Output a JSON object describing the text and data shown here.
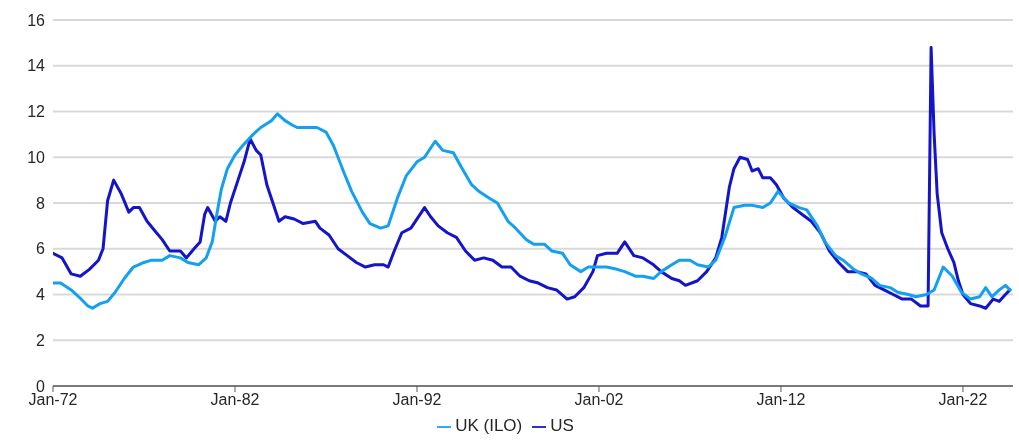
{
  "chart_data": {
    "type": "line",
    "xlim": [
      "1972-01",
      "2024-10"
    ],
    "xticks": [
      {
        "value": "1972-01",
        "label": "Jan-72"
      },
      {
        "value": "1982-01",
        "label": "Jan-82"
      },
      {
        "value": "1992-01",
        "label": "Jan-92"
      },
      {
        "value": "2002-01",
        "label": "Jan-02"
      },
      {
        "value": "2012-01",
        "label": "Jan-12"
      },
      {
        "value": "2022-01",
        "label": "Jan-22"
      }
    ],
    "ylim": [
      0,
      16
    ],
    "yticks": [
      0,
      2,
      4,
      6,
      8,
      10,
      12,
      14,
      16
    ],
    "grid": "y",
    "legend": "bottom",
    "marker": "none",
    "line_style": "solid",
    "series": [
      {
        "name": "US",
        "color": "#1414c8",
        "x": [
          "1972-01",
          "1972-07",
          "1973-01",
          "1973-07",
          "1974-01",
          "1974-07",
          "1974-10",
          "1975-01",
          "1975-05",
          "1975-10",
          "1976-03",
          "1976-06",
          "1976-10",
          "1977-03",
          "1977-08",
          "1978-01",
          "1978-06",
          "1979-01",
          "1979-05",
          "1979-10",
          "1980-02",
          "1980-05",
          "1980-07",
          "1980-12",
          "1981-03",
          "1981-07",
          "1981-10",
          "1982-03",
          "1982-07",
          "1982-11",
          "1983-03",
          "1983-06",
          "1983-10",
          "1984-03",
          "1984-06",
          "1984-10",
          "1985-04",
          "1985-10",
          "1986-06",
          "1986-09",
          "1987-03",
          "1987-09",
          "1988-03",
          "1988-09",
          "1989-03",
          "1989-09",
          "1990-03",
          "1990-06",
          "1990-10",
          "1991-03",
          "1991-09",
          "1992-06",
          "1992-10",
          "1993-03",
          "1993-09",
          "1994-03",
          "1994-09",
          "1995-03",
          "1995-09",
          "1996-03",
          "1996-09",
          "1997-03",
          "1997-09",
          "1998-03",
          "1998-09",
          "1999-03",
          "1999-09",
          "2000-04",
          "2000-09",
          "2001-03",
          "2001-09",
          "2001-12",
          "2002-06",
          "2003-01",
          "2003-06",
          "2003-12",
          "2004-06",
          "2005-01",
          "2005-06",
          "2006-01",
          "2006-06",
          "2006-10",
          "2007-06",
          "2007-12",
          "2008-06",
          "2008-10",
          "2009-03",
          "2009-06",
          "2009-10",
          "2010-03",
          "2010-06",
          "2010-10",
          "2011-01",
          "2011-06",
          "2011-10",
          "2012-03",
          "2012-09",
          "2013-03",
          "2013-09",
          "2014-03",
          "2014-09",
          "2015-03",
          "2015-09",
          "2016-03",
          "2016-09",
          "2017-03",
          "2017-09",
          "2018-03",
          "2018-09",
          "2019-03",
          "2019-09",
          "2020-02",
          "2020-04",
          "2020-06",
          "2020-08",
          "2020-11",
          "2021-03",
          "2021-07",
          "2021-10",
          "2022-01",
          "2022-06",
          "2022-12",
          "2023-04",
          "2023-09",
          "2024-01",
          "2024-05",
          "2024-08"
        ],
        "values": [
          5.8,
          5.6,
          4.9,
          4.8,
          5.1,
          5.5,
          6.0,
          8.1,
          9.0,
          8.4,
          7.6,
          7.8,
          7.8,
          7.2,
          6.8,
          6.4,
          5.9,
          5.9,
          5.6,
          6.0,
          6.3,
          7.5,
          7.8,
          7.2,
          7.4,
          7.2,
          8.0,
          9.0,
          9.8,
          10.8,
          10.3,
          10.1,
          8.8,
          7.8,
          7.2,
          7.4,
          7.3,
          7.1,
          7.2,
          6.9,
          6.6,
          6.0,
          5.7,
          5.4,
          5.2,
          5.3,
          5.3,
          5.2,
          5.9,
          6.7,
          6.9,
          7.8,
          7.4,
          7.0,
          6.7,
          6.5,
          5.9,
          5.5,
          5.6,
          5.5,
          5.2,
          5.2,
          4.8,
          4.6,
          4.5,
          4.3,
          4.2,
          3.8,
          3.9,
          4.3,
          5.0,
          5.7,
          5.8,
          5.8,
          6.3,
          5.7,
          5.6,
          5.3,
          5.0,
          4.7,
          4.6,
          4.4,
          4.6,
          5.0,
          5.6,
          6.5,
          8.7,
          9.5,
          10.0,
          9.9,
          9.4,
          9.5,
          9.1,
          9.1,
          8.8,
          8.2,
          7.8,
          7.5,
          7.2,
          6.7,
          5.9,
          5.4,
          5.0,
          5.0,
          4.9,
          4.4,
          4.2,
          4.0,
          3.8,
          3.8,
          3.5,
          3.5,
          14.8,
          11.0,
          8.4,
          6.7,
          6.0,
          5.4,
          4.6,
          4.0,
          3.6,
          3.5,
          3.4,
          3.8,
          3.7,
          4.0,
          4.2
        ]
      },
      {
        "name": "UK (ILO)",
        "color": "#14a0f0",
        "x": [
          "1972-01",
          "1972-06",
          "1973-01",
          "1973-06",
          "1973-12",
          "1974-03",
          "1974-08",
          "1975-01",
          "1975-06",
          "1975-12",
          "1976-06",
          "1977-01",
          "1977-06",
          "1978-01",
          "1978-06",
          "1979-01",
          "1979-06",
          "1980-01",
          "1980-06",
          "1980-10",
          "1981-01",
          "1981-04",
          "1981-08",
          "1982-01",
          "1982-06",
          "1983-01",
          "1983-06",
          "1984-01",
          "1984-05",
          "1984-10",
          "1985-03",
          "1985-06",
          "1986-01",
          "1986-07",
          "1987-01",
          "1987-06",
          "1988-01",
          "1988-06",
          "1989-01",
          "1989-06",
          "1990-01",
          "1990-06",
          "1990-12",
          "1991-06",
          "1992-01",
          "1992-06",
          "1993-01",
          "1993-06",
          "1994-01",
          "1994-06",
          "1995-01",
          "1995-06",
          "1996-01",
          "1996-06",
          "1997-01",
          "1997-06",
          "1998-01",
          "1998-06",
          "1999-01",
          "1999-06",
          "2000-01",
          "2000-06",
          "2001-01",
          "2001-06",
          "2002-01",
          "2002-06",
          "2003-01",
          "2003-06",
          "2004-01",
          "2004-06",
          "2005-01",
          "2005-06",
          "2006-01",
          "2006-06",
          "2007-01",
          "2007-06",
          "2008-01",
          "2008-06",
          "2008-12",
          "2009-06",
          "2010-01",
          "2010-06",
          "2011-01",
          "2011-06",
          "2011-11",
          "2012-06",
          "2013-01",
          "2013-06",
          "2014-01",
          "2014-06",
          "2015-01",
          "2015-06",
          "2016-01",
          "2016-06",
          "2017-01",
          "2017-06",
          "2018-01",
          "2018-06",
          "2019-01",
          "2019-06",
          "2020-01",
          "2020-06",
          "2020-12",
          "2021-06",
          "2021-12",
          "2022-06",
          "2022-12",
          "2023-04",
          "2023-08",
          "2024-01",
          "2024-05",
          "2024-08"
        ],
        "values": [
          4.5,
          4.5,
          4.2,
          3.9,
          3.5,
          3.4,
          3.6,
          3.7,
          4.1,
          4.7,
          5.2,
          5.4,
          5.5,
          5.5,
          5.7,
          5.6,
          5.4,
          5.3,
          5.6,
          6.3,
          7.5,
          8.6,
          9.5,
          10.1,
          10.5,
          11.0,
          11.3,
          11.6,
          11.9,
          11.6,
          11.4,
          11.3,
          11.3,
          11.3,
          11.1,
          10.5,
          9.3,
          8.5,
          7.6,
          7.1,
          6.9,
          7.0,
          8.2,
          9.2,
          9.8,
          10.0,
          10.7,
          10.3,
          10.2,
          9.6,
          8.8,
          8.5,
          8.2,
          8.0,
          7.2,
          6.9,
          6.4,
          6.2,
          6.2,
          5.9,
          5.8,
          5.3,
          5.0,
          5.2,
          5.2,
          5.2,
          5.1,
          5.0,
          4.8,
          4.8,
          4.7,
          5.0,
          5.3,
          5.5,
          5.5,
          5.3,
          5.2,
          5.5,
          6.5,
          7.8,
          7.9,
          7.9,
          7.8,
          8.0,
          8.5,
          8.0,
          7.8,
          7.7,
          7.0,
          6.3,
          5.7,
          5.5,
          5.1,
          4.9,
          4.7,
          4.4,
          4.3,
          4.1,
          4.0,
          3.9,
          4.0,
          4.2,
          5.2,
          4.8,
          4.1,
          3.8,
          3.9,
          4.3,
          3.9,
          4.2,
          4.4,
          4.2
        ]
      }
    ]
  }
}
